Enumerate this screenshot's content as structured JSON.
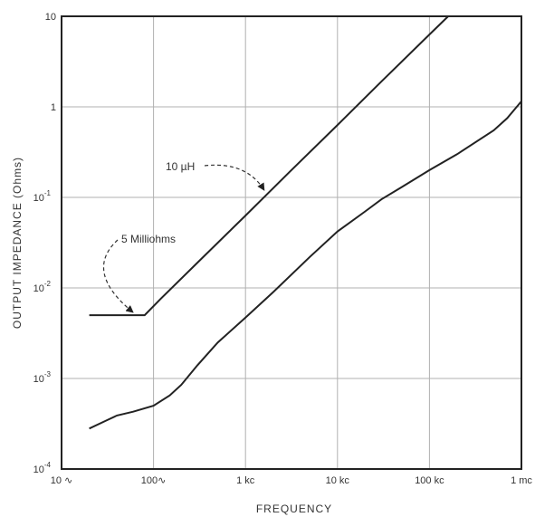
{
  "chart_data": {
    "type": "line",
    "title": "",
    "xlabel": "FREQUENCY",
    "ylabel": "OUTPUT IMPEDANCE (Ohms)",
    "xscale": "log",
    "yscale": "log",
    "xlim": [
      10,
      1000000
    ],
    "ylim": [
      0.0001,
      10
    ],
    "grid": true,
    "legend": "none",
    "x_ticks": [
      {
        "value": 10,
        "label": "10 ∿"
      },
      {
        "value": 100,
        "label": "100∿"
      },
      {
        "value": 1000,
        "label": "1 kc"
      },
      {
        "value": 10000,
        "label": "10 kc"
      },
      {
        "value": 100000,
        "label": "100 kc"
      },
      {
        "value": 1000000,
        "label": "1 mc"
      }
    ],
    "y_ticks": [
      {
        "value": 10,
        "base": "10",
        "exp": ""
      },
      {
        "value": 1,
        "base": "1",
        "exp": ""
      },
      {
        "value": 0.1,
        "base": "10",
        "exp": "-1"
      },
      {
        "value": 0.01,
        "base": "10",
        "exp": "-2"
      },
      {
        "value": 0.001,
        "base": "10",
        "exp": "-3"
      },
      {
        "value": 0.0001,
        "base": "10",
        "exp": "-4"
      }
    ],
    "series": [
      {
        "points": [
          [
            20,
            0.005
          ],
          [
            80,
            0.005
          ],
          [
            120,
            0.0076
          ],
          [
            300,
            0.019
          ],
          [
            1000,
            0.063
          ],
          [
            3000,
            0.19
          ],
          [
            10000,
            0.63
          ],
          [
            30000,
            1.9
          ],
          [
            100000,
            6.3
          ],
          [
            160000,
            10
          ]
        ]
      },
      {
        "points": [
          [
            20,
            0.00028
          ],
          [
            30,
            0.00034
          ],
          [
            40,
            0.00039
          ],
          [
            60,
            0.00043
          ],
          [
            100,
            0.0005
          ],
          [
            150,
            0.00065
          ],
          [
            200,
            0.00085
          ],
          [
            300,
            0.0014
          ],
          [
            500,
            0.0025
          ],
          [
            1000,
            0.0047
          ],
          [
            2000,
            0.009
          ],
          [
            5000,
            0.022
          ],
          [
            10000,
            0.042
          ],
          [
            20000,
            0.07
          ],
          [
            30000,
            0.095
          ],
          [
            50000,
            0.13
          ],
          [
            100000,
            0.2
          ],
          [
            200000,
            0.3
          ],
          [
            500000,
            0.55
          ],
          [
            700000,
            0.75
          ],
          [
            1000000,
            1.15
          ]
        ]
      }
    ],
    "annotations": [
      {
        "text": "10 µH",
        "x": 1600,
        "y": 0.12
      },
      {
        "text": "5 Milliohms",
        "x": 60,
        "y": 0.005
      }
    ]
  }
}
